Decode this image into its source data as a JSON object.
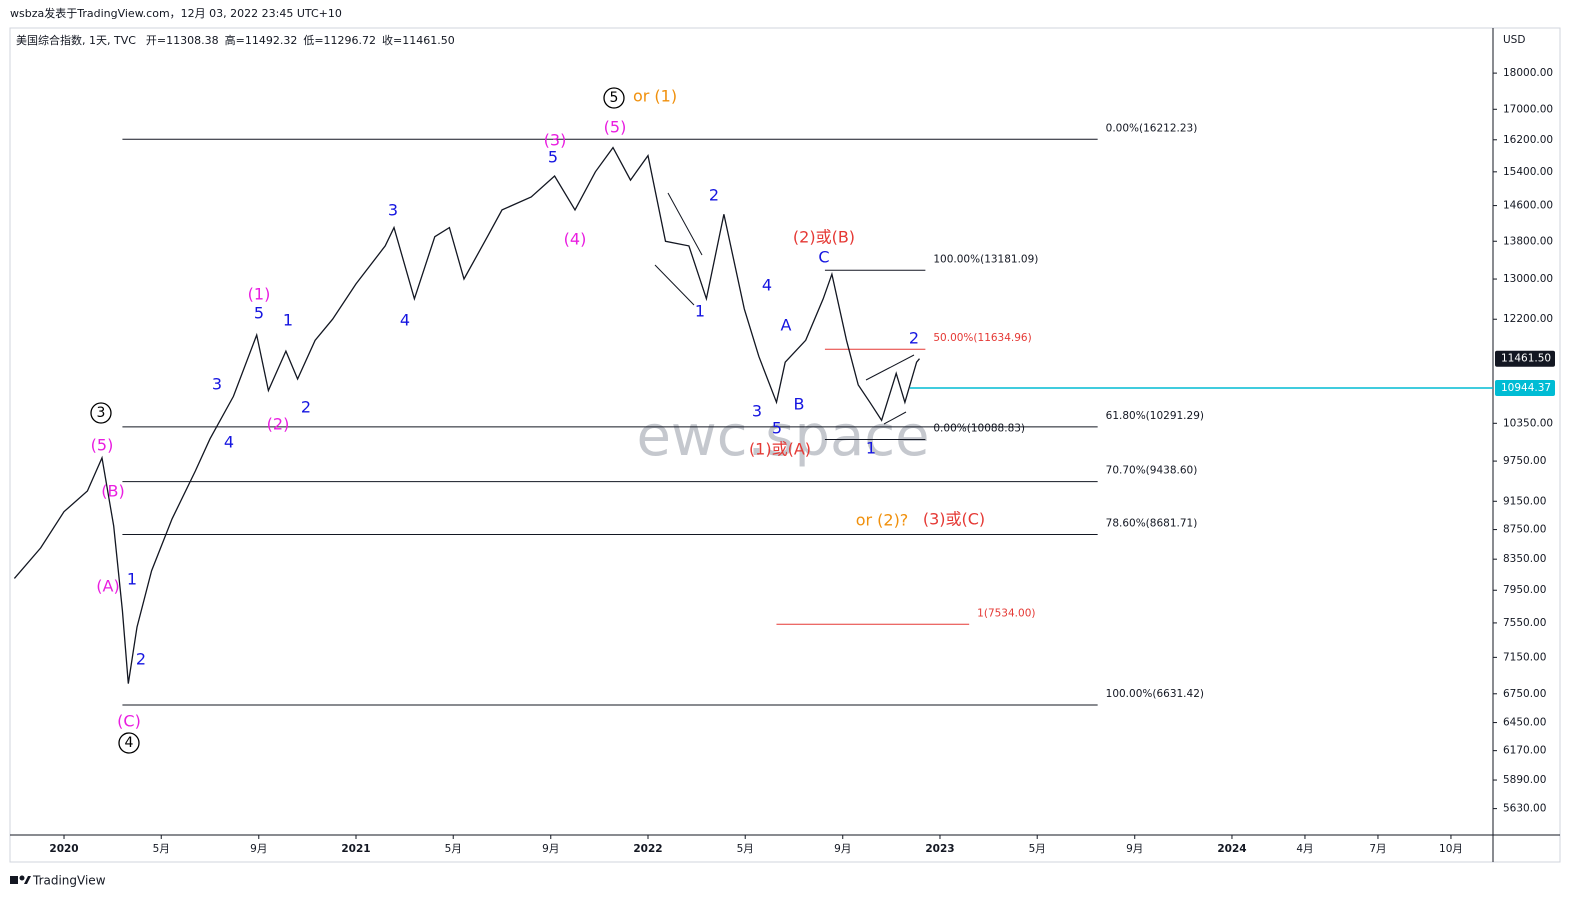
{
  "chart_data": {
    "type": "line",
    "caption": "wsbza发表于TradingView.com，12月 03, 2022 23:45 UTC+10",
    "symbol": "美国综合指数, 1天, TVC",
    "ohlc": [
      "开=11308.38",
      "高=11492.32",
      "低=11296.72",
      "收=11461.50"
    ],
    "currency": "USD",
    "watermark": "ewc.space",
    "brand": "TradingView",
    "log_scale": true,
    "xlim": [
      2019.815,
      2024.894
    ],
    "ylim": [
      5400,
      19330
    ],
    "xticks": [
      {
        "value": 2020,
        "label": "2020"
      },
      {
        "value": 2020.333,
        "label": "5月"
      },
      {
        "value": 2020.667,
        "label": "9月"
      },
      {
        "value": 2021,
        "label": "2021"
      },
      {
        "value": 2021.333,
        "label": "5月"
      },
      {
        "value": 2021.667,
        "label": "9月"
      },
      {
        "value": 2022,
        "label": "2022"
      },
      {
        "value": 2022.333,
        "label": "5月"
      },
      {
        "value": 2022.667,
        "label": "9月"
      },
      {
        "value": 2023,
        "label": "2023"
      },
      {
        "value": 2023.333,
        "label": "5月"
      },
      {
        "value": 2023.667,
        "label": "9月"
      },
      {
        "value": 2024,
        "label": "2024"
      },
      {
        "value": 2024.25,
        "label": "4月"
      },
      {
        "value": 2024.5,
        "label": "7月"
      },
      {
        "value": 2024.75,
        "label": "10月"
      }
    ],
    "yticks": [
      {
        "value": 18000,
        "label": "18000.00"
      },
      {
        "value": 17000,
        "label": "17000.00"
      },
      {
        "value": 16200,
        "label": "16200.00"
      },
      {
        "value": 15400,
        "label": "15400.00"
      },
      {
        "value": 14600,
        "label": "14600.00"
      },
      {
        "value": 13800,
        "label": "13800.00"
      },
      {
        "value": 13000,
        "label": "13000.00"
      },
      {
        "value": 12200,
        "label": "12200.00"
      },
      {
        "value": 10350,
        "label": "10350.00"
      },
      {
        "value": 9750,
        "label": "9750.00"
      },
      {
        "value": 9150,
        "label": "9150.00"
      },
      {
        "value": 8750,
        "label": "8750.00"
      },
      {
        "value": 8350,
        "label": "8350.00"
      },
      {
        "value": 7950,
        "label": "7950.00"
      },
      {
        "value": 7550,
        "label": "7550.00"
      },
      {
        "value": 7150,
        "label": "7150.00"
      },
      {
        "value": 6750,
        "label": "6750.00"
      },
      {
        "value": 6450,
        "label": "6450.00"
      },
      {
        "value": 6170,
        "label": "6170.00"
      },
      {
        "value": 5890,
        "label": "5890.00"
      },
      {
        "value": 5630,
        "label": "5630.00"
      }
    ],
    "x": [
      2019.83,
      2019.92,
      2020.0,
      2020.08,
      2020.13,
      2020.17,
      2020.2,
      2020.22,
      2020.25,
      2020.3,
      2020.37,
      2020.45,
      2020.5,
      2020.58,
      2020.66,
      2020.7,
      2020.76,
      2020.8,
      2020.86,
      2020.92,
      2021.0,
      2021.1,
      2021.13,
      2021.2,
      2021.27,
      2021.32,
      2021.37,
      2021.45,
      2021.5,
      2021.6,
      2021.68,
      2021.75,
      2021.82,
      2021.88,
      2021.94,
      2022.0,
      2022.06,
      2022.14,
      2022.2,
      2022.26,
      2022.33,
      2022.38,
      2022.44,
      2022.47,
      2022.54,
      2022.6,
      2022.63,
      2022.68,
      2022.72,
      2022.76,
      2022.8,
      2022.85,
      2022.88,
      2022.92,
      2022.93
    ],
    "series": [
      {
        "color": "#131722",
        "values": [
          8100,
          8500,
          9000,
          9300,
          9800,
          8800,
          7700,
          6860,
          7500,
          8200,
          8900,
          9600,
          10100,
          10800,
          11900,
          10900,
          11600,
          11100,
          11800,
          12200,
          12900,
          13700,
          14100,
          12600,
          13900,
          14100,
          13000,
          13900,
          14500,
          14800,
          15300,
          14500,
          15400,
          16000,
          15200,
          15800,
          13800,
          13700,
          12600,
          14400,
          12400,
          11500,
          10700,
          11400,
          11800,
          12600,
          13100,
          11800,
          11000,
          10700,
          10400,
          11200,
          10700,
          11400,
          11461.5
        ]
      }
    ],
    "fib_levels": [
      {
        "label": "0.00%(16212.23)",
        "value": 16212.23,
        "x": [
          2020.2,
          2023.54
        ],
        "color": "#131722"
      },
      {
        "label": "61.80%(10291.29)",
        "value": 10291.29,
        "x": [
          2020.2,
          2023.54
        ],
        "color": "#131722"
      },
      {
        "label": "70.70%(9438.60)",
        "value": 9438.6,
        "x": [
          2020.2,
          2023.54
        ],
        "color": "#131722"
      },
      {
        "label": "78.60%(8681.71)",
        "value": 8681.71,
        "x": [
          2020.2,
          2023.54
        ],
        "color": "#131722"
      },
      {
        "label": "100.00%(6631.42)",
        "value": 6631.42,
        "x": [
          2020.2,
          2023.54
        ],
        "color": "#131722"
      },
      {
        "label": "100.00%(13181.09)",
        "value": 13181.09,
        "x": [
          2022.606,
          2022.95
        ],
        "color": "#131722"
      },
      {
        "label": "50.00%(11634.96)",
        "value": 11634.96,
        "x": [
          2022.606,
          2022.95
        ],
        "color": "#e53935"
      },
      {
        "label": "0.00%(10088.83)",
        "value": 10088.83,
        "x": [
          2022.606,
          2022.95
        ],
        "color": "#131722"
      },
      {
        "label": "1(7534.00)",
        "value": 7534,
        "x": [
          2022.44,
          2023.1
        ],
        "color": "#e53935"
      }
    ],
    "price_tags": [
      {
        "value": 11461.5,
        "label": "11461.50",
        "color": "#131722"
      },
      {
        "value": 10944.37,
        "label": "10944.37",
        "color": "#00bcd4"
      }
    ],
    "annotations": [
      {
        "text": "5",
        "color": "#000000",
        "circled": true
      },
      {
        "text": "or (1)",
        "color": "#f0900c"
      },
      {
        "text": "(3)",
        "color": "#e91ee0"
      },
      {
        "text": "5",
        "color": "#1515e0"
      },
      {
        "text": "(5)",
        "color": "#e91ee0"
      },
      {
        "text": "(4)",
        "color": "#e91ee0"
      },
      {
        "text": "3",
        "color": "#1515e0"
      },
      {
        "text": "4",
        "color": "#1515e0"
      },
      {
        "text": "(1)",
        "color": "#e91ee0"
      },
      {
        "text": "5",
        "color": "#1515e0"
      },
      {
        "text": "1",
        "color": "#1515e0"
      },
      {
        "text": "2",
        "color": "#1515e0"
      },
      {
        "text": "(2)",
        "color": "#e91ee0"
      },
      {
        "text": "3",
        "color": "#1515e0"
      },
      {
        "text": "4",
        "color": "#1515e0"
      },
      {
        "text": "3",
        "color": "#000000",
        "circled": true
      },
      {
        "text": "(5)",
        "color": "#e91ee0"
      },
      {
        "text": "(B)",
        "color": "#e91ee0"
      },
      {
        "text": "(A)",
        "color": "#e91ee0"
      },
      {
        "text": "1",
        "color": "#1515e0"
      },
      {
        "text": "2",
        "color": "#1515e0"
      },
      {
        "text": "(C)",
        "color": "#e91ee0"
      },
      {
        "text": "4",
        "color": "#000000",
        "circled": true
      },
      {
        "text": "2",
        "color": "#1515e0"
      },
      {
        "text": "1",
        "color": "#1515e0"
      },
      {
        "text": "4",
        "color": "#1515e0"
      },
      {
        "text": "A",
        "color": "#1515e0"
      },
      {
        "text": "3",
        "color": "#1515e0"
      },
      {
        "text": "B",
        "color": "#1515e0"
      },
      {
        "text": "5",
        "color": "#1515e0"
      },
      {
        "text": "(1)或(A)",
        "color": "#e53935"
      },
      {
        "text": "(2)或(B)",
        "color": "#e53935"
      },
      {
        "text": "C",
        "color": "#1515e0"
      },
      {
        "text": "2",
        "color": "#1515e0"
      },
      {
        "text": "1",
        "color": "#1515e0"
      },
      {
        "text": "or (2)?",
        "color": "#f0900c"
      },
      {
        "text": "(3)或(C)",
        "color": "#e53935"
      }
    ]
  }
}
